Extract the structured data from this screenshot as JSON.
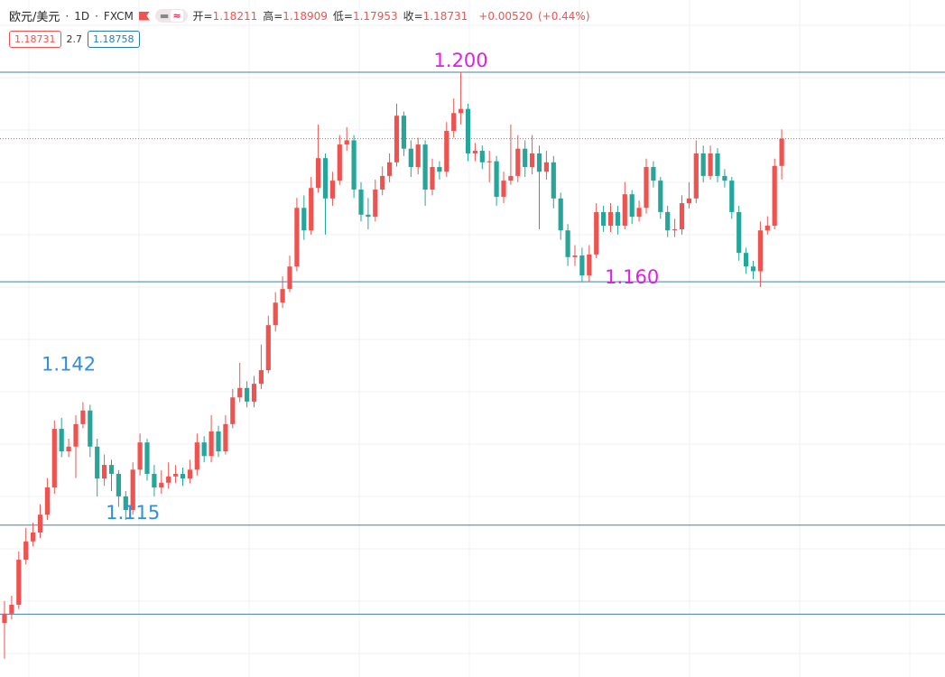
{
  "header": {
    "symbol": "欧元/美元",
    "interval": "1D",
    "source": "FXCM",
    "pill": "≈",
    "stats": [
      {
        "label": "开=",
        "value": "1.18211"
      },
      {
        "label": "高=",
        "value": "1.18909"
      },
      {
        "label": "低=",
        "value": "1.17953"
      },
      {
        "label": "收=",
        "value": "1.18731"
      }
    ],
    "change": "+0.00520",
    "change_pct": "(+0.44%)",
    "badges": [
      {
        "text": "1.18731",
        "color": "#ef5350"
      },
      {
        "text": "2.7",
        "color": "#333"
      },
      {
        "text": "1.18758",
        "color": "#2a7ab8"
      }
    ]
  },
  "chart_data": {
    "type": "candlestick",
    "ylim": [
      1.0845,
      1.2138
    ],
    "up_color": "#ef5350",
    "down_color": "#26a69a",
    "open": [
      1.0948,
      1.0966,
      1.0983,
      1.1069,
      1.1104,
      1.1121,
      1.1155,
      1.1207,
      1.1319,
      1.1276,
      1.1285,
      1.1328,
      1.1354,
      1.1285,
      1.1224,
      1.125,
      1.1233,
      1.119,
      1.1164,
      1.1241,
      1.1293,
      1.1233,
      1.1207,
      1.1216,
      1.1228,
      1.1233,
      1.1224,
      1.1241,
      1.1293,
      1.1267,
      1.1314,
      1.1276,
      1.1328,
      1.1379,
      1.1397,
      1.1371,
      1.1405,
      1.1431,
      1.1517,
      1.156,
      1.1586,
      1.1629,
      1.1741,
      1.1698,
      1.1779,
      1.1836,
      1.1759,
      1.1793,
      1.1862,
      1.187,
      1.1776,
      1.1728,
      1.1724,
      1.1776,
      1.1802,
      1.1828,
      1.1917,
      1.1854,
      1.1819,
      1.1862,
      1.1776,
      1.1819,
      1.181,
      1.1888,
      1.1922,
      1.193,
      1.1845,
      1.185,
      1.1828,
      1.183,
      1.1762,
      1.1793,
      1.1802,
      1.1854,
      1.1819,
      1.1845,
      1.181,
      1.1828,
      1.1759,
      1.1698,
      1.1647,
      1.165,
      1.1612,
      1.1652,
      1.1733,
      1.1707,
      1.1733,
      1.1707,
      1.1767,
      1.1724,
      1.1741,
      1.1819,
      1.1793,
      1.1733,
      1.1698,
      1.17,
      1.175,
      1.1759,
      1.1845,
      1.1802,
      1.1845,
      1.1802,
      1.1793,
      1.1733,
      1.1655,
      1.1629,
      1.162,
      1.1698,
      1.1707,
      1.18211
    ],
    "high": [
      1.099,
      1.1,
      1.1085,
      1.113,
      1.114,
      1.1175,
      1.1225,
      1.1335,
      1.134,
      1.13,
      1.1345,
      1.137,
      1.1365,
      1.13,
      1.127,
      1.126,
      1.124,
      1.12,
      1.1255,
      1.131,
      1.13,
      1.125,
      1.124,
      1.1255,
      1.125,
      1.1245,
      1.126,
      1.131,
      1.1305,
      1.1345,
      1.1325,
      1.1345,
      1.1395,
      1.1445,
      1.141,
      1.142,
      1.148,
      1.1535,
      1.158,
      1.161,
      1.165,
      1.176,
      1.1765,
      1.18,
      1.19,
      1.1845,
      1.181,
      1.188,
      1.1895,
      1.188,
      1.179,
      1.176,
      1.1795,
      1.182,
      1.1845,
      1.194,
      1.1925,
      1.187,
      1.1875,
      1.187,
      1.1835,
      1.183,
      1.1905,
      1.195,
      1.2,
      1.194,
      1.1865,
      1.186,
      1.185,
      1.184,
      1.181,
      1.19,
      1.188,
      1.187,
      1.188,
      1.186,
      1.185,
      1.184,
      1.177,
      1.171,
      1.167,
      1.1665,
      1.167,
      1.175,
      1.1745,
      1.175,
      1.1745,
      1.179,
      1.1775,
      1.1755,
      1.1835,
      1.183,
      1.18,
      1.1745,
      1.172,
      1.1765,
      1.179,
      1.187,
      1.186,
      1.186,
      1.1855,
      1.1815,
      1.18,
      1.1745,
      1.1665,
      1.164,
      1.1715,
      1.1725,
      1.1835,
      1.18909
    ],
    "low": [
      1.088,
      1.0955,
      1.0975,
      1.106,
      1.1095,
      1.111,
      1.1145,
      1.1195,
      1.1265,
      1.1265,
      1.1225,
      1.132,
      1.1265,
      1.119,
      1.121,
      1.12,
      1.117,
      1.1145,
      1.1155,
      1.123,
      1.122,
      1.119,
      1.1195,
      1.1205,
      1.1215,
      1.121,
      1.1215,
      1.123,
      1.1255,
      1.1255,
      1.1265,
      1.127,
      1.132,
      1.137,
      1.136,
      1.136,
      1.1395,
      1.1425,
      1.1505,
      1.155,
      1.158,
      1.162,
      1.168,
      1.169,
      1.177,
      1.169,
      1.1745,
      1.1785,
      1.185,
      1.176,
      1.1715,
      1.17,
      1.1715,
      1.1765,
      1.179,
      1.182,
      1.184,
      1.18,
      1.1805,
      1.1745,
      1.1765,
      1.1795,
      1.18,
      1.1875,
      1.19,
      1.183,
      1.183,
      1.1815,
      1.179,
      1.1745,
      1.175,
      1.1785,
      1.179,
      1.18,
      1.1805,
      1.17,
      1.1795,
      1.174,
      1.168,
      1.163,
      1.163,
      1.16,
      1.16,
      1.1645,
      1.1695,
      1.1695,
      1.169,
      1.17,
      1.171,
      1.1715,
      1.173,
      1.178,
      1.172,
      1.1685,
      1.1685,
      1.169,
      1.174,
      1.175,
      1.179,
      1.1795,
      1.179,
      1.178,
      1.172,
      1.164,
      1.1615,
      1.1605,
      1.159,
      1.169,
      1.17,
      1.17953
    ],
    "close": [
      1.0966,
      1.0983,
      1.1069,
      1.1104,
      1.1121,
      1.1155,
      1.1207,
      1.1319,
      1.1276,
      1.1285,
      1.1328,
      1.1354,
      1.1285,
      1.1224,
      1.125,
      1.1233,
      1.119,
      1.1164,
      1.1241,
      1.1293,
      1.1233,
      1.1207,
      1.1216,
      1.1228,
      1.1233,
      1.1224,
      1.1241,
      1.1293,
      1.1267,
      1.1314,
      1.1276,
      1.1328,
      1.1379,
      1.1397,
      1.1371,
      1.1405,
      1.1431,
      1.1517,
      1.156,
      1.1586,
      1.1629,
      1.1741,
      1.1698,
      1.1779,
      1.1836,
      1.1759,
      1.1793,
      1.1862,
      1.187,
      1.1776,
      1.1728,
      1.1724,
      1.1776,
      1.1802,
      1.1828,
      1.1917,
      1.1854,
      1.1819,
      1.1862,
      1.1776,
      1.1819,
      1.181,
      1.1888,
      1.1922,
      1.193,
      1.1845,
      1.185,
      1.1828,
      1.183,
      1.1762,
      1.1793,
      1.1802,
      1.1854,
      1.1819,
      1.1845,
      1.181,
      1.1828,
      1.1759,
      1.1698,
      1.1647,
      1.165,
      1.1612,
      1.1652,
      1.1733,
      1.1707,
      1.1733,
      1.1707,
      1.1767,
      1.1724,
      1.1741,
      1.1819,
      1.1793,
      1.1733,
      1.1698,
      1.17,
      1.175,
      1.1759,
      1.1845,
      1.1802,
      1.1845,
      1.1802,
      1.1793,
      1.1733,
      1.1655,
      1.1629,
      1.162,
      1.1698,
      1.1707,
      1.18211,
      1.18731
    ],
    "levels": [
      1.2,
      1.16,
      1.1135,
      1.0965
    ],
    "level_color": "#3f7fb8",
    "last_price_line": true,
    "annotations": [
      {
        "value": 1.2,
        "label": "1.200",
        "index": 64,
        "color": "#e020e0"
      },
      {
        "value": 1.16,
        "label": "1.160",
        "index": 88,
        "color": "#e020e0"
      },
      {
        "value": 1.142,
        "label": "1.142",
        "index": 9,
        "color": "#2f8fe0"
      },
      {
        "value": 1.115,
        "label": "1.115",
        "index": 18,
        "color": "#2f8fe0"
      }
    ]
  }
}
